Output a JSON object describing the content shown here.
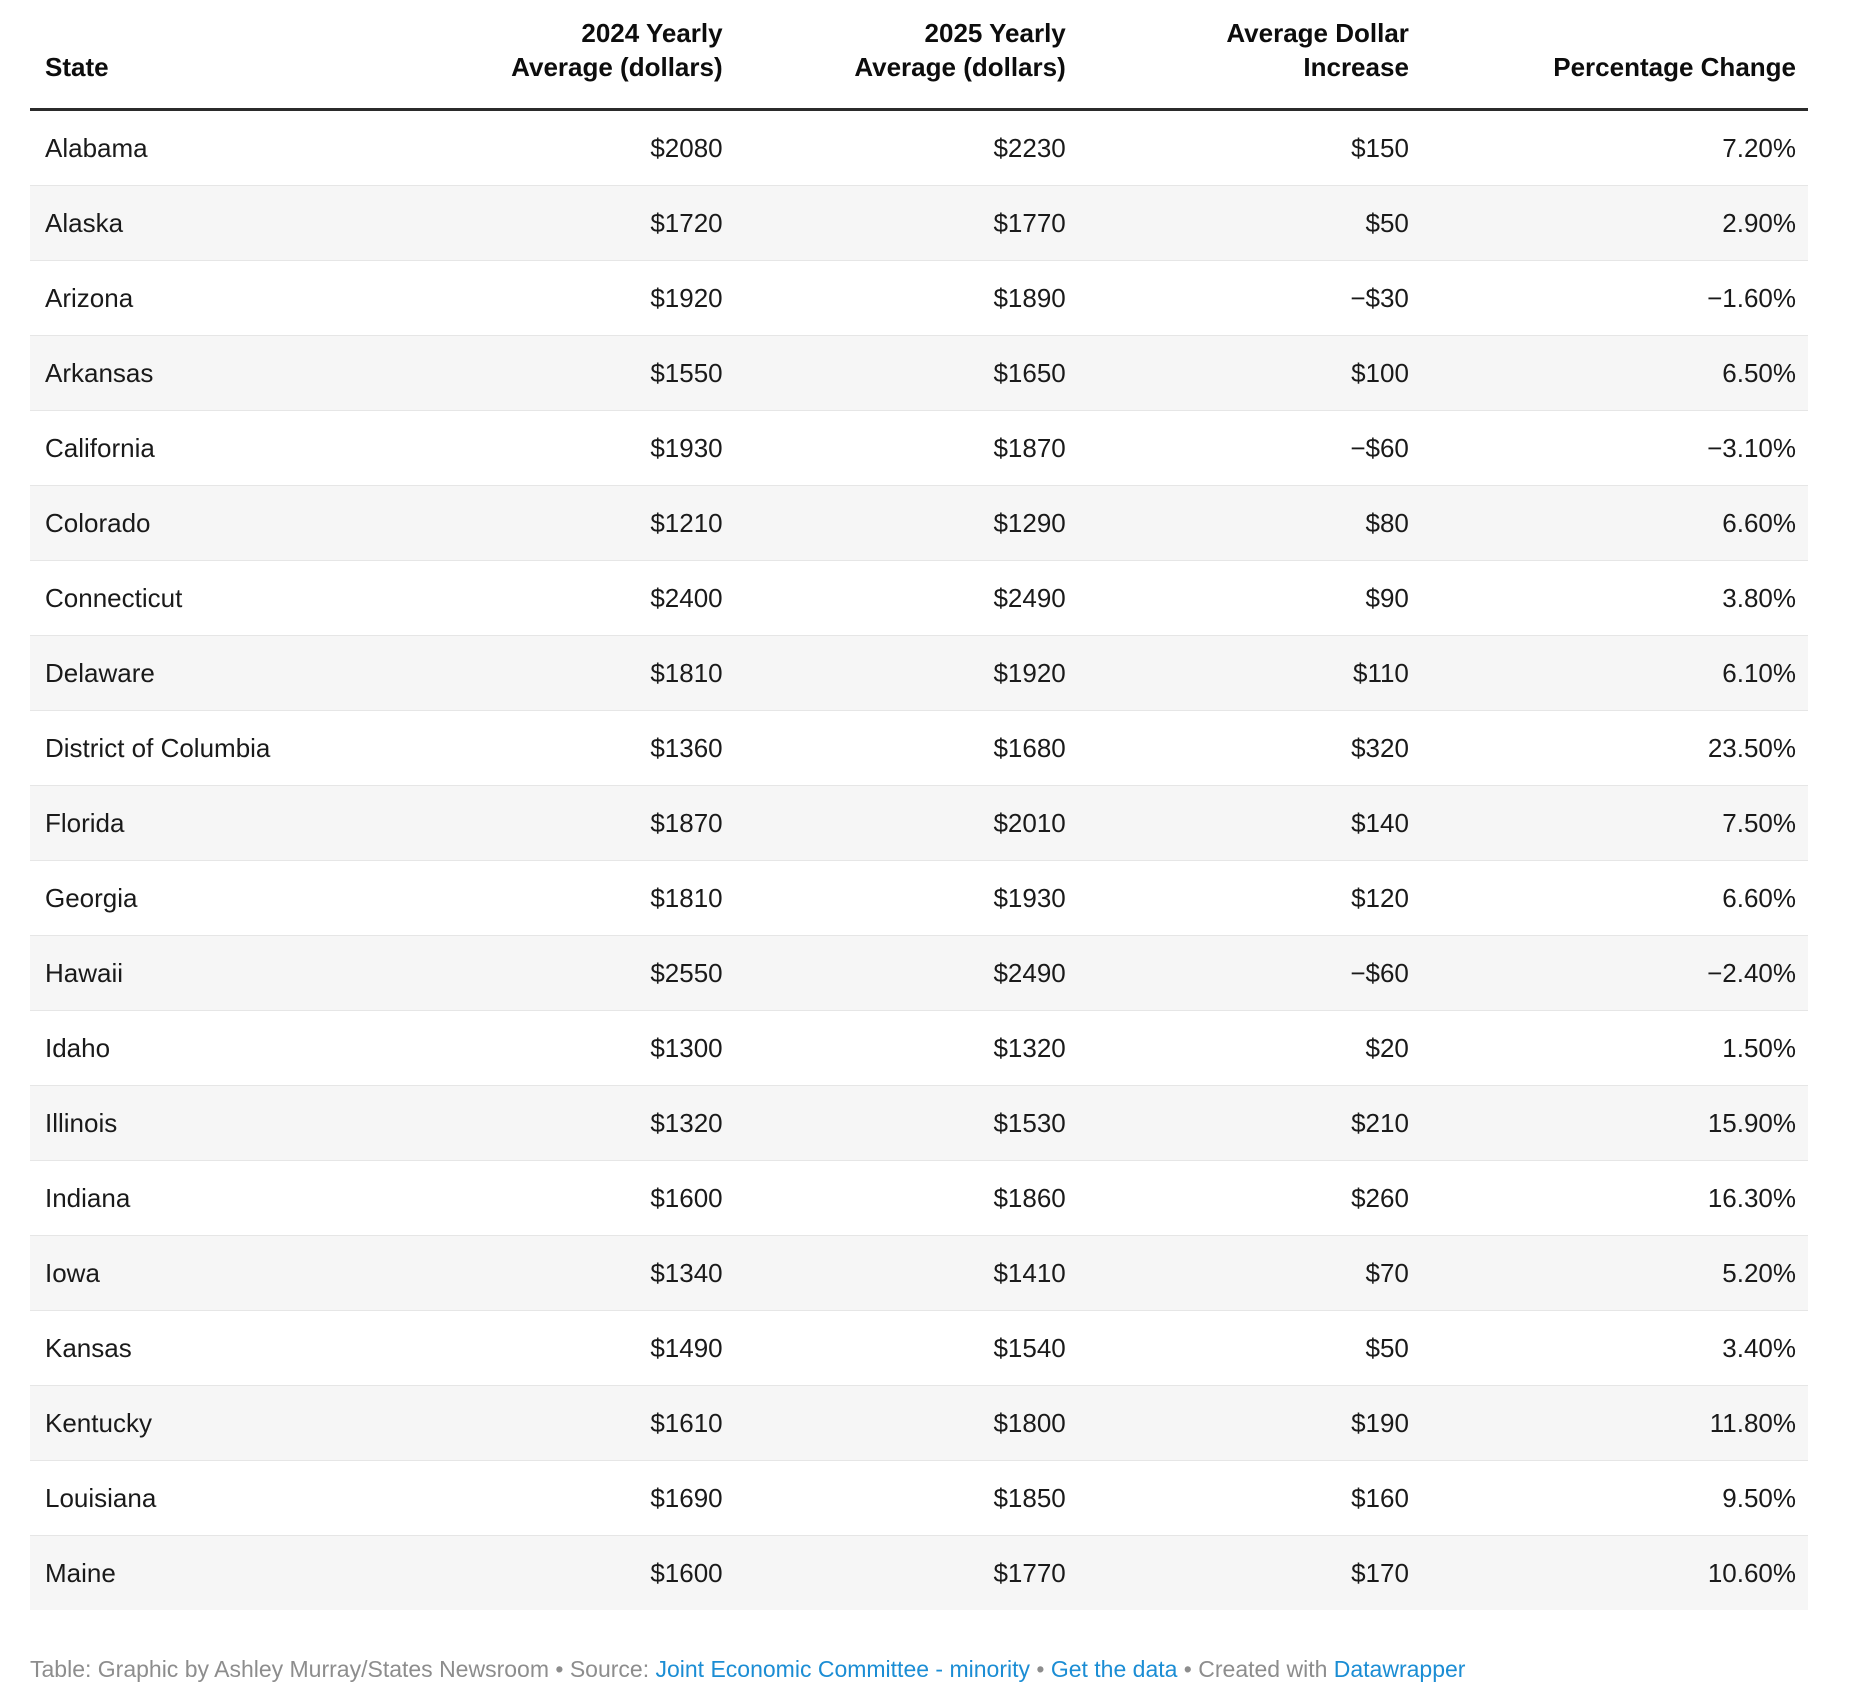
{
  "chart_data": {
    "type": "table",
    "columns": [
      {
        "label": "State",
        "align": "left"
      },
      {
        "label": "2024 Yearly\nAverage (dollars)",
        "align": "right"
      },
      {
        "label": "2025 Yearly\nAverage (dollars)",
        "align": "right"
      },
      {
        "label": "Average Dollar\nIncrease",
        "align": "right"
      },
      {
        "label": "Percentage Change",
        "align": "right"
      }
    ],
    "rows": [
      {
        "state": "Alabama",
        "avg_2024": "$2080",
        "avg_2025": "$2230",
        "dollar_increase": "$150",
        "pct_change": "7.20%"
      },
      {
        "state": "Alaska",
        "avg_2024": "$1720",
        "avg_2025": "$1770",
        "dollar_increase": "$50",
        "pct_change": "2.90%"
      },
      {
        "state": "Arizona",
        "avg_2024": "$1920",
        "avg_2025": "$1890",
        "dollar_increase": "−$30",
        "pct_change": "−1.60%"
      },
      {
        "state": "Arkansas",
        "avg_2024": "$1550",
        "avg_2025": "$1650",
        "dollar_increase": "$100",
        "pct_change": "6.50%"
      },
      {
        "state": "California",
        "avg_2024": "$1930",
        "avg_2025": "$1870",
        "dollar_increase": "−$60",
        "pct_change": "−3.10%"
      },
      {
        "state": "Colorado",
        "avg_2024": "$1210",
        "avg_2025": "$1290",
        "dollar_increase": "$80",
        "pct_change": "6.60%"
      },
      {
        "state": "Connecticut",
        "avg_2024": "$2400",
        "avg_2025": "$2490",
        "dollar_increase": "$90",
        "pct_change": "3.80%"
      },
      {
        "state": "Delaware",
        "avg_2024": "$1810",
        "avg_2025": "$1920",
        "dollar_increase": "$110",
        "pct_change": "6.10%"
      },
      {
        "state": "District of Columbia",
        "avg_2024": "$1360",
        "avg_2025": "$1680",
        "dollar_increase": "$320",
        "pct_change": "23.50%"
      },
      {
        "state": "Florida",
        "avg_2024": "$1870",
        "avg_2025": "$2010",
        "dollar_increase": "$140",
        "pct_change": "7.50%"
      },
      {
        "state": "Georgia",
        "avg_2024": "$1810",
        "avg_2025": "$1930",
        "dollar_increase": "$120",
        "pct_change": "6.60%"
      },
      {
        "state": "Hawaii",
        "avg_2024": "$2550",
        "avg_2025": "$2490",
        "dollar_increase": "−$60",
        "pct_change": "−2.40%"
      },
      {
        "state": "Idaho",
        "avg_2024": "$1300",
        "avg_2025": "$1320",
        "dollar_increase": "$20",
        "pct_change": "1.50%"
      },
      {
        "state": "Illinois",
        "avg_2024": "$1320",
        "avg_2025": "$1530",
        "dollar_increase": "$210",
        "pct_change": "15.90%"
      },
      {
        "state": "Indiana",
        "avg_2024": "$1600",
        "avg_2025": "$1860",
        "dollar_increase": "$260",
        "pct_change": "16.30%"
      },
      {
        "state": "Iowa",
        "avg_2024": "$1340",
        "avg_2025": "$1410",
        "dollar_increase": "$70",
        "pct_change": "5.20%"
      },
      {
        "state": "Kansas",
        "avg_2024": "$1490",
        "avg_2025": "$1540",
        "dollar_increase": "$50",
        "pct_change": "3.40%"
      },
      {
        "state": "Kentucky",
        "avg_2024": "$1610",
        "avg_2025": "$1800",
        "dollar_increase": "$190",
        "pct_change": "11.80%"
      },
      {
        "state": "Louisiana",
        "avg_2024": "$1690",
        "avg_2025": "$1850",
        "dollar_increase": "$160",
        "pct_change": "9.50%"
      },
      {
        "state": "Maine",
        "avg_2024": "$1600",
        "avg_2025": "$1770",
        "dollar_increase": "$170",
        "pct_change": "10.60%"
      }
    ]
  },
  "footer": {
    "segments": [
      {
        "type": "text",
        "text": "Table: Graphic by Ashley Murray/States Newsroom • Source: "
      },
      {
        "type": "link",
        "text": "Joint Economic Committee - minority",
        "name": "footer-link-joint-economic-committee"
      },
      {
        "type": "text",
        "text": " • "
      },
      {
        "type": "link",
        "text": "Get the data",
        "name": "footer-link-get-the-data"
      },
      {
        "type": "text",
        "text": " • Created with "
      },
      {
        "type": "link",
        "text": "Datawrapper",
        "name": "footer-link-datawrapper"
      }
    ]
  },
  "colors": {
    "link_blue": "#1b8dd4",
    "row_stripe": "#f6f6f6",
    "row_divider": "#e6e6e6",
    "header_border": "#2b2b2b",
    "footer_gray": "#8d8d8d"
  }
}
